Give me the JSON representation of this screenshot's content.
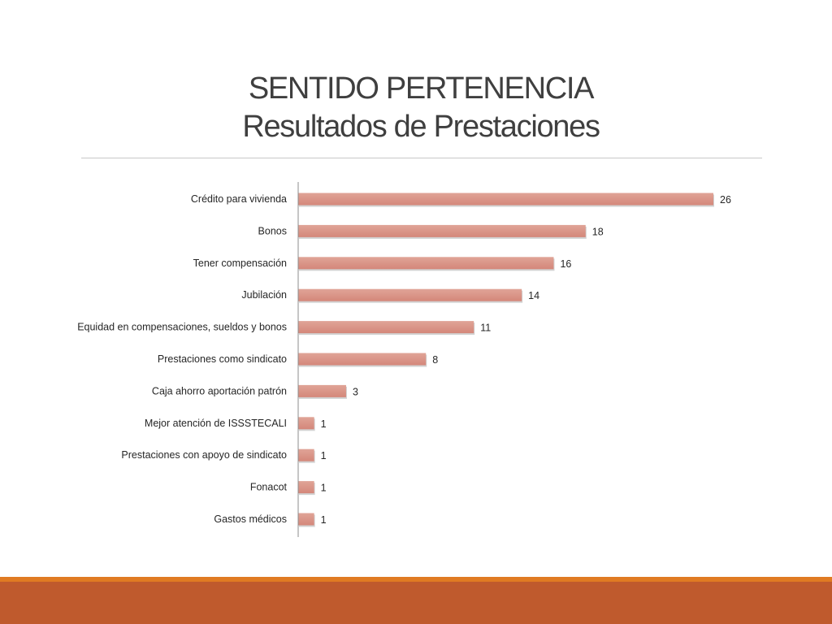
{
  "title": {
    "line1": "SENTIDO PERTENENCIA",
    "line2": "Resultados de Prestaciones"
  },
  "colors": {
    "bar": "#d4877a",
    "bar_highlight": "#e0a497",
    "axis": "#8c8c8c",
    "footer_accent": "#e07b22",
    "footer": "#bf5a2d"
  },
  "chart_data": {
    "type": "bar",
    "orientation": "horizontal",
    "title": "",
    "xlabel": "",
    "ylabel": "",
    "categories": [
      "Crédito para vivienda",
      "Bonos",
      "Tener compensación",
      "Jubilación",
      "Equidad en compensaciones, sueldos y bonos",
      "Prestaciones como sindicato",
      "Caja ahorro aportación patrón",
      "Mejor atención de ISSSTECALI",
      "Prestaciones con apoyo de sindicato",
      "Fonacot",
      "Gastos médicos"
    ],
    "values": [
      26,
      18,
      16,
      14,
      11,
      8,
      3,
      1,
      1,
      1,
      1
    ],
    "xlim": [
      0,
      26
    ],
    "grid": false,
    "legend": "none",
    "data_labels": true
  }
}
